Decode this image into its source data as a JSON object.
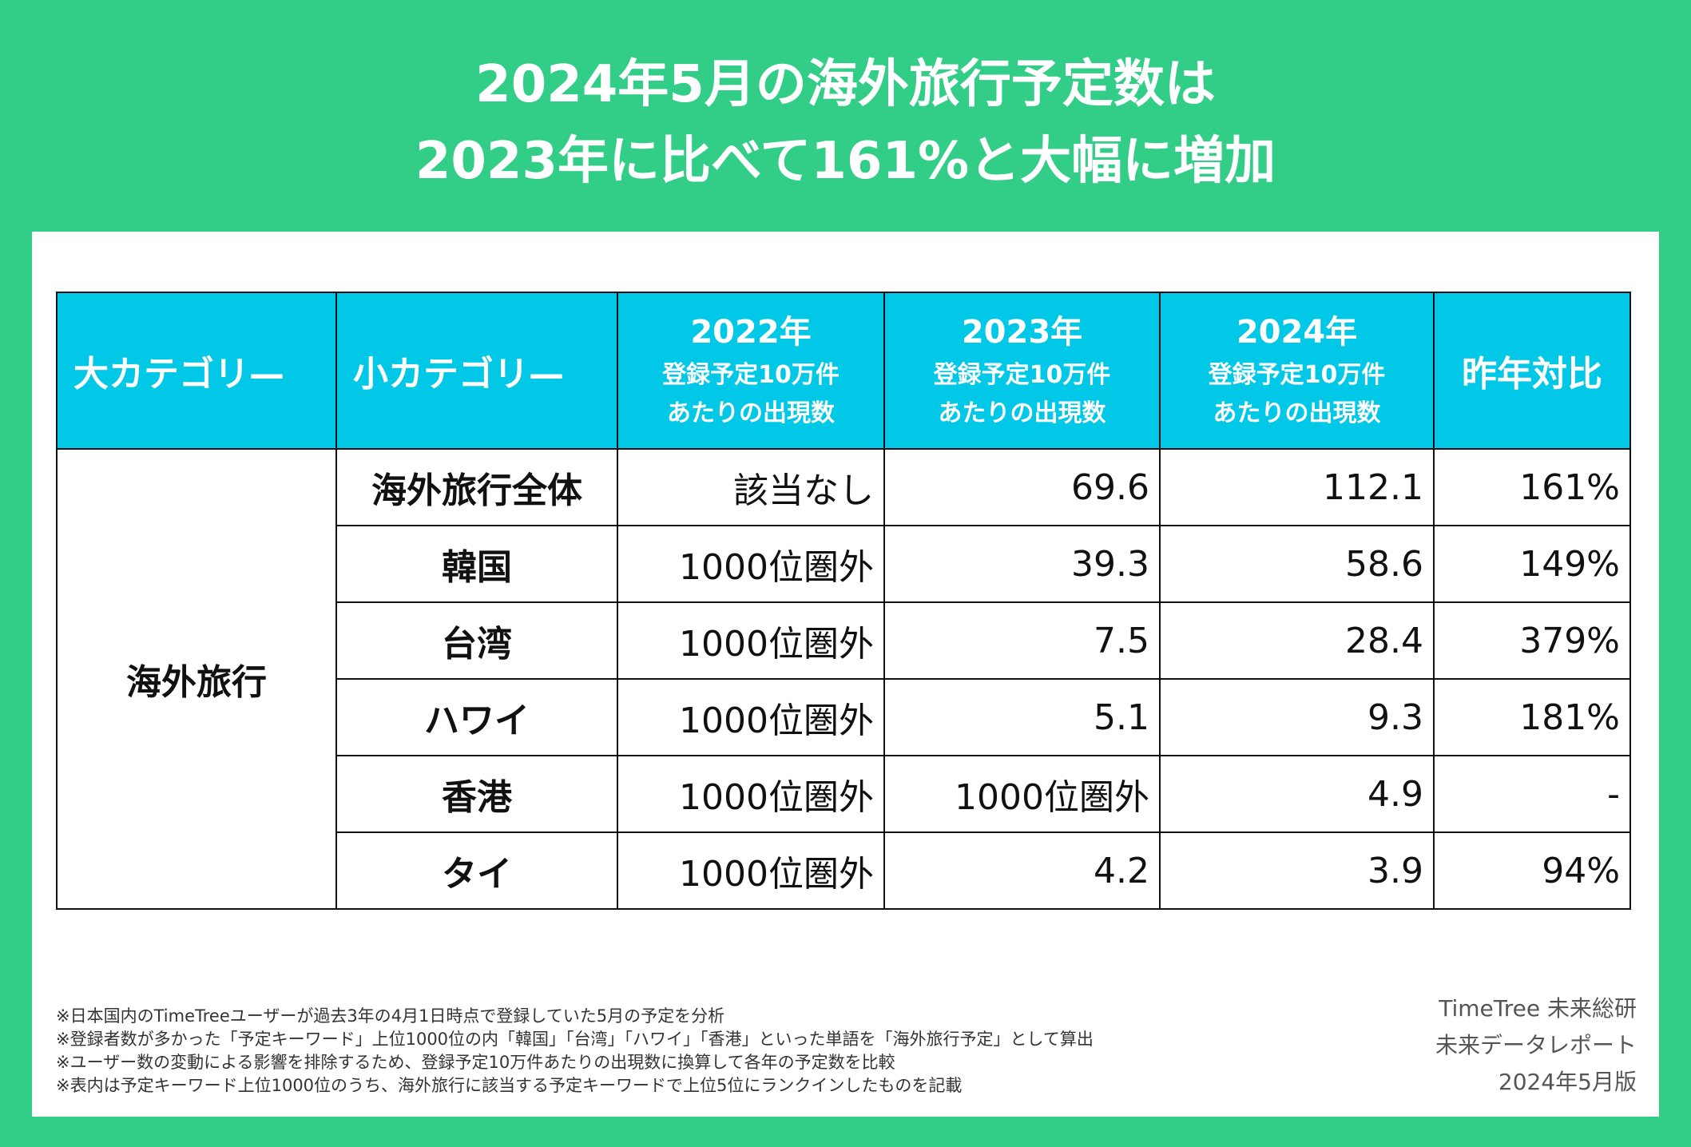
{
  "title": {
    "line1": "2024年5月の海外旅行予定数は",
    "line2": "2023年に比べて161%と大幅に増加"
  },
  "table": {
    "headers": {
      "major_category": "大カテゴリ—",
      "minor_category": "小カテゴリ—",
      "year_2022": "2022年",
      "year_2023": "2023年",
      "year_2024": "2024年",
      "sub_line1": "登録予定10万件",
      "sub_line2": "あたりの出現数",
      "yoy": "昨年対比"
    },
    "category": "海外旅行",
    "rows": [
      {
        "name": "海外旅行全体",
        "v2022": "該当なし",
        "v2023": "69.6",
        "v2024": "112.1",
        "yoy": "161%"
      },
      {
        "name": "韓国",
        "v2022": "1000位圏外",
        "v2023": "39.3",
        "v2024": "58.6",
        "yoy": "149%"
      },
      {
        "name": "台湾",
        "v2022": "1000位圏外",
        "v2023": "7.5",
        "v2024": "28.4",
        "yoy": "379%"
      },
      {
        "name": "ハワイ",
        "v2022": "1000位圏外",
        "v2023": "5.1",
        "v2024": "9.3",
        "yoy": "181%"
      },
      {
        "name": "香港",
        "v2022": "1000位圏外",
        "v2023": "1000位圏外",
        "v2024": "4.9",
        "yoy": "-"
      },
      {
        "name": "タイ",
        "v2022": "1000位圏外",
        "v2023": "4.2",
        "v2024": "3.9",
        "yoy": "94%"
      }
    ]
  },
  "notes": [
    "※日本国内のTimeTreeユーザーが過去3年の4月1日時点で登録していた5月の予定を分析",
    "※登録者数が多かった「予定キーワード」上位1000位の内「韓国」「台湾」「ハワイ」「香港」といった単語を「海外旅行予定」として算出",
    "※ユーザー数の変動による影響を排除するため、登録予定10万件あたりの出現数に換算して各年の予定数を比較",
    "※表内は予定キーワード上位1000位のうち、海外旅行に該当する予定キーワードで上位5位にランクインしたものを記載"
  ],
  "credit": {
    "line1": "TimeTree 未来総研",
    "line2": "未来データレポート",
    "line3": "2024年5月版"
  },
  "colors": {
    "background": "#32CD87",
    "header": "#00C8E6",
    "text": "#111111"
  }
}
